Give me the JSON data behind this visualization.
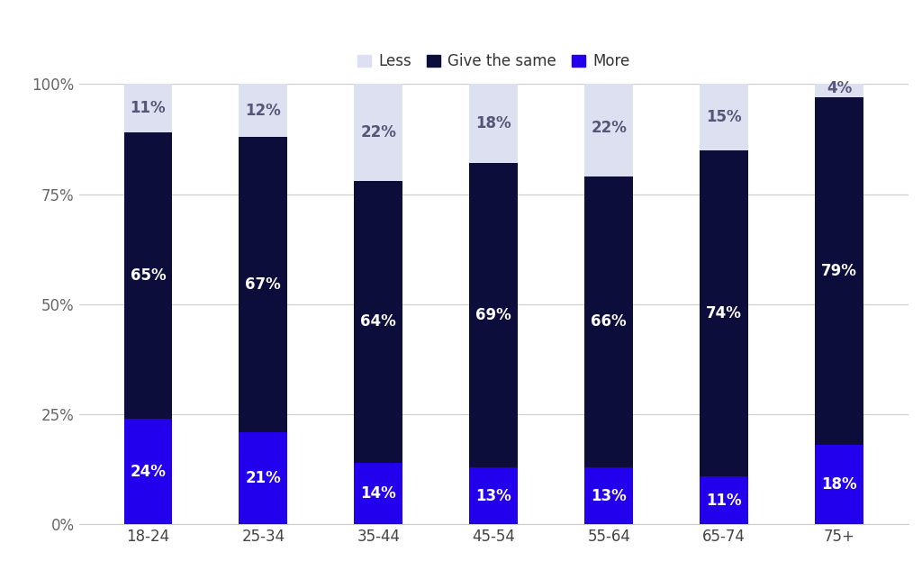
{
  "categories": [
    "18-24",
    "25-34",
    "35-44",
    "45-54",
    "55-64",
    "65-74",
    "75+"
  ],
  "more": [
    24,
    21,
    14,
    13,
    13,
    11,
    18
  ],
  "same": [
    65,
    67,
    64,
    69,
    66,
    74,
    79
  ],
  "less": [
    11,
    12,
    22,
    18,
    22,
    15,
    4
  ],
  "color_more": "#2200ee",
  "color_same": "#0d0d3b",
  "color_less": "#dde0f0",
  "bg_color": "#ffffff",
  "legend_labels": [
    "Less",
    "Give the same",
    "More"
  ],
  "yticks": [
    0,
    25,
    50,
    75,
    100
  ],
  "ytick_labels": [
    "0%",
    "25%",
    "50%",
    "75%",
    "100%"
  ],
  "label_fontsize": 12,
  "tick_fontsize": 12,
  "legend_fontsize": 12
}
